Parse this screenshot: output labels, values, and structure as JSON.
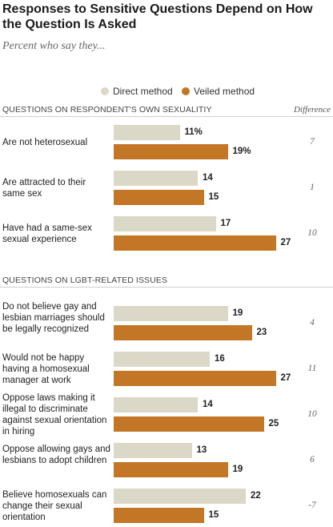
{
  "title": "Responses to Sensitive Questions Depend on How the Question Is Asked",
  "subtitle": "Percent who say they...",
  "legend": {
    "direct": "Direct method",
    "veiled": "Veiled method"
  },
  "colors": {
    "direct": "#dbd8c8",
    "veiled": "#c27626"
  },
  "difference_header": "Difference",
  "chart_data": {
    "type": "bar",
    "orientation": "horizontal",
    "title": "Responses to Sensitive Questions Depend on How the Question Is Asked",
    "subtitle": "Percent who say they...",
    "value_suffix_first_row": "%",
    "series": [
      {
        "name": "Direct method",
        "values": [
          11,
          14,
          17,
          19,
          16,
          14,
          13,
          22
        ]
      },
      {
        "name": "Veiled method",
        "values": [
          19,
          15,
          27,
          23,
          27,
          25,
          19,
          15
        ]
      }
    ],
    "sections": [
      {
        "label": "QUESTIONS ON RESPONDENT'S OWN SEXUALITIY",
        "rows": [
          {
            "label": "Are not heterosexual",
            "direct": 11,
            "veiled": 19,
            "direct_text": "11%",
            "veiled_text": "19%",
            "difference": "7"
          },
          {
            "label": "Are attracted to their same sex",
            "direct": 14,
            "veiled": 15,
            "direct_text": "14",
            "veiled_text": "15",
            "difference": "1"
          },
          {
            "label": "Have had a same-sex sexual experience",
            "direct": 17,
            "veiled": 27,
            "direct_text": "17",
            "veiled_text": "27",
            "difference": "10"
          }
        ]
      },
      {
        "label": "QUESTIONS ON LGBT-RELATED ISSUES",
        "rows": [
          {
            "label": "Do not believe gay and lesbian marriages should be legally recognized",
            "direct": 19,
            "veiled": 23,
            "direct_text": "19",
            "veiled_text": "23",
            "difference": "4"
          },
          {
            "label": "Would not be happy having a homosexual manager at work",
            "direct": 16,
            "veiled": 27,
            "direct_text": "16",
            "veiled_text": "27",
            "difference": "11"
          },
          {
            "label": "Oppose laws making it illegal to discriminate against sexual orientation in hiring",
            "direct": 14,
            "veiled": 25,
            "direct_text": "14",
            "veiled_text": "25",
            "difference": "10"
          },
          {
            "label": "Oppose allowing gays and lesbians to adopt children",
            "direct": 13,
            "veiled": 19,
            "direct_text": "13",
            "veiled_text": "19",
            "difference": "6"
          },
          {
            "label": "Believe homosexuals can change their sexual orientation",
            "direct": 22,
            "veiled": 15,
            "direct_text": "22",
            "veiled_text": "15",
            "difference": "-7"
          }
        ]
      }
    ]
  }
}
